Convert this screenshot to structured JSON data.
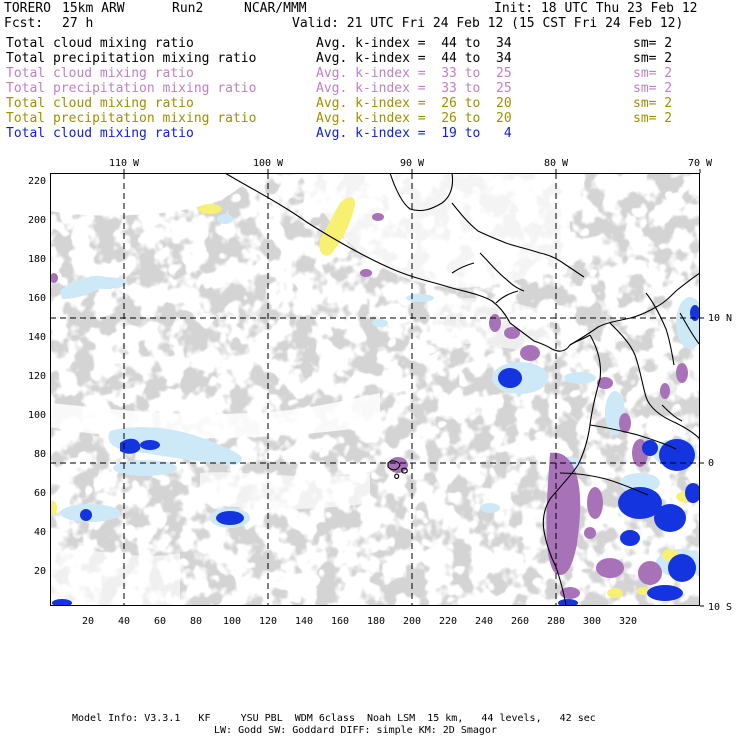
{
  "header": {
    "model": "TORERO",
    "resolution": "15km ARW",
    "run": "Run2",
    "org": "NCAR/MMM",
    "init": "Init: 18 UTC Thu 23 Feb 12",
    "fcst_label": "Fcst:",
    "fcst_value": "27 h",
    "valid": "Valid: 21 UTC Fri 24 Feb 12 (15 CST Fri 24 Feb 12)"
  },
  "legend": [
    {
      "field": "Total cloud mixing ratio",
      "kidx": "Avg. k-index =  44 to  34",
      "sm": "sm= 2",
      "color": "#000000"
    },
    {
      "field": "Total precipitation mixing ratio",
      "kidx": "Avg. k-index =  44 to  34",
      "sm": "sm= 2",
      "color": "#000000"
    },
    {
      "field": "Total cloud mixing ratio",
      "kidx": "Avg. k-index =  33 to  25",
      "sm": "sm= 2",
      "color": "#c080c8"
    },
    {
      "field": "Total precipitation mixing ratio",
      "kidx": "Avg. k-index =  33 to  25",
      "sm": "sm= 2",
      "color": "#c080c8"
    },
    {
      "field": "Total cloud mixing ratio",
      "kidx": "Avg. k-index =  26 to  20",
      "sm": "sm= 2",
      "color": "#a09000"
    },
    {
      "field": "Total precipitation mixing ratio",
      "kidx": "Avg. k-index =  26 to  20",
      "sm": "sm= 2",
      "color": "#a09000"
    },
    {
      "field": "Total cloud mixing ratio",
      "kidx": "Avg. k-index =  19 to   4",
      "sm": "sm= 2",
      "color": "#1020e0"
    }
  ],
  "lon_labels": [
    "110 W",
    "100 W",
    "90 W",
    "80 W",
    "70 W"
  ],
  "lat_labels": [
    "10 N",
    "0",
    "10 S"
  ],
  "grid_x_labels": [
    "20",
    "40",
    "60",
    "80",
    "100",
    "120",
    "140",
    "160",
    "180",
    "200",
    "220",
    "240",
    "260",
    "280",
    "300",
    "320"
  ],
  "grid_y_labels": [
    "220",
    "200",
    "180",
    "160",
    "140",
    "120",
    "100",
    "80",
    "60",
    "40",
    "20"
  ],
  "footer": {
    "line1": "Model Info: V3.3.1   KF     YSU PBL  WDM 6class  Noah LSM  15 km,   44 levels,   42 sec",
    "line2": "LW: Godd SW: Goddard DIFF: simple KM: 2D Smagor"
  },
  "colors": {
    "cloud_gray": "#a8a8a8",
    "light_blue": "#c8e8f8",
    "blue": "#1030e0",
    "purple": "#a070b0",
    "yellow": "#f8f070"
  }
}
